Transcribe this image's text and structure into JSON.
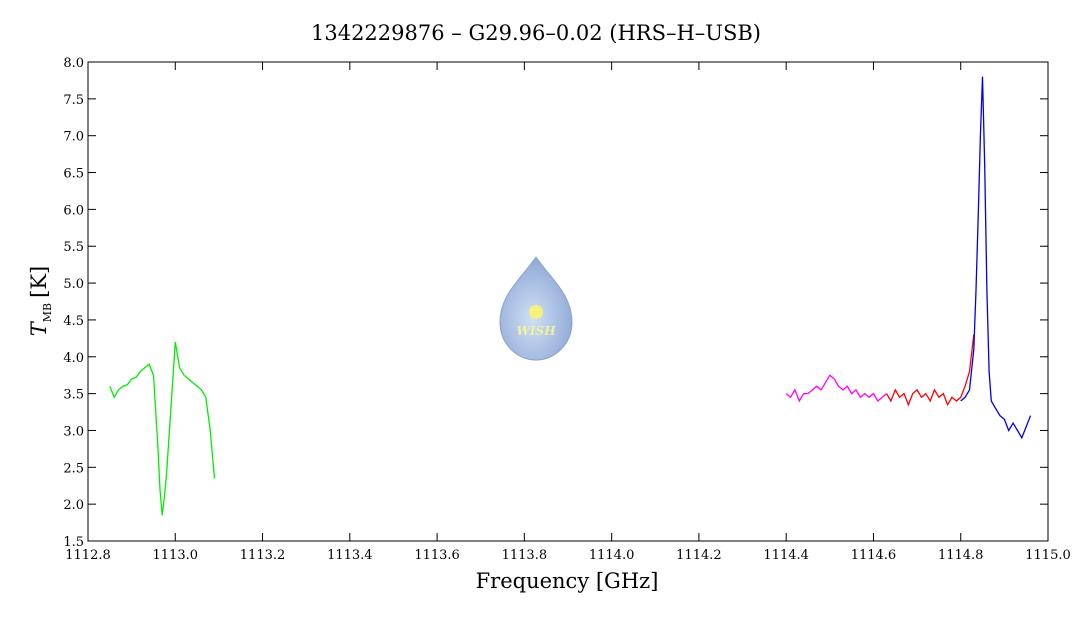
{
  "chart_data": {
    "type": "line",
    "title": "1342229876 – G29.96–0.02 (HRS–H–USB)",
    "x_label": "Frequency [GHz]",
    "y_label": {
      "symbol": "T",
      "subscript": "MB",
      "unit": "[K]"
    },
    "logo_text": "WISH",
    "xlim": [
      1112.8,
      1115.0
    ],
    "xticks": [
      1112.8,
      {
        "value": 1113.0,
        "label": "1113.0"
      },
      1113.2,
      1113.4,
      1113.6,
      1113.8,
      {
        "value": 1114.0,
        "label": "1114.0"
      },
      1114.2,
      1114.4,
      1114.6,
      1114.8,
      {
        "value": 1115.0,
        "label": "1115.0"
      }
    ],
    "ylim": [
      1.5,
      8.0
    ],
    "yticks": [
      1.5,
      {
        "value": 2.0,
        "label": "2.0"
      },
      2.5,
      {
        "value": 3.0,
        "label": "3.0"
      },
      3.5,
      {
        "value": 4.0,
        "label": "4.0"
      },
      4.5,
      {
        "value": 5.0,
        "label": "5.0"
      },
      5.5,
      {
        "value": 6.0,
        "label": "6.0"
      },
      6.5,
      {
        "value": 7.0,
        "label": "7.0"
      },
      7.5,
      {
        "value": 8.0,
        "label": "8.0"
      }
    ],
    "series": [
      {
        "color": "#00ee00",
        "x": [
          1112.85,
          1112.86,
          1112.87,
          1112.88,
          1112.89,
          1112.9,
          1112.91,
          1112.92,
          1112.93,
          1112.94,
          1112.95,
          1112.96,
          1112.965,
          1112.97,
          1112.975,
          1112.98,
          1112.99,
          1113.0,
          1113.01,
          1113.02,
          1113.03,
          1113.04,
          1113.05,
          1113.06,
          1113.07,
          1113.08,
          1113.09
        ],
        "values": [
          3.6,
          3.45,
          3.55,
          3.6,
          3.62,
          3.7,
          3.72,
          3.8,
          3.85,
          3.9,
          3.75,
          2.8,
          2.2,
          1.85,
          2.1,
          2.4,
          3.3,
          4.2,
          3.85,
          3.75,
          3.7,
          3.65,
          3.6,
          3.55,
          3.45,
          3.0,
          2.35
        ]
      },
      {
        "color": "#ff00ff",
        "x": [
          1114.4,
          1114.41,
          1114.42,
          1114.43,
          1114.44,
          1114.45,
          1114.46,
          1114.47,
          1114.48,
          1114.49,
          1114.5,
          1114.51,
          1114.52,
          1114.53,
          1114.54,
          1114.55,
          1114.56,
          1114.57,
          1114.58,
          1114.59,
          1114.6,
          1114.61,
          1114.62,
          1114.63
        ],
        "values": [
          3.5,
          3.45,
          3.55,
          3.4,
          3.5,
          3.5,
          3.55,
          3.6,
          3.55,
          3.65,
          3.75,
          3.7,
          3.6,
          3.55,
          3.6,
          3.5,
          3.55,
          3.45,
          3.5,
          3.45,
          3.5,
          3.4,
          3.45,
          3.5
        ]
      },
      {
        "color": "#ff0000",
        "x": [
          1114.63,
          1114.64,
          1114.65,
          1114.66,
          1114.67,
          1114.68,
          1114.69,
          1114.7,
          1114.71,
          1114.72,
          1114.73,
          1114.74,
          1114.75,
          1114.76,
          1114.77,
          1114.78,
          1114.79,
          1114.8,
          1114.81,
          1114.82,
          1114.83
        ],
        "values": [
          3.5,
          3.4,
          3.55,
          3.45,
          3.5,
          3.35,
          3.5,
          3.55,
          3.45,
          3.5,
          3.4,
          3.55,
          3.45,
          3.5,
          3.35,
          3.45,
          3.4,
          3.45,
          3.6,
          3.8,
          4.3
        ]
      },
      {
        "color": "#0000ee",
        "x": [
          1114.8,
          1114.81,
          1114.82,
          1114.83,
          1114.835,
          1114.84,
          1114.845,
          1114.85,
          1114.855,
          1114.86,
          1114.865,
          1114.87,
          1114.88,
          1114.89,
          1114.9,
          1114.91,
          1114.92,
          1114.93,
          1114.94,
          1114.95,
          1114.96
        ],
        "values": [
          3.4,
          3.45,
          3.55,
          4.1,
          4.9,
          5.9,
          7.0,
          7.8,
          6.6,
          4.9,
          3.8,
          3.4,
          3.3,
          3.2,
          3.15,
          3.0,
          3.1,
          3.0,
          2.9,
          3.05,
          3.2
        ]
      }
    ]
  }
}
